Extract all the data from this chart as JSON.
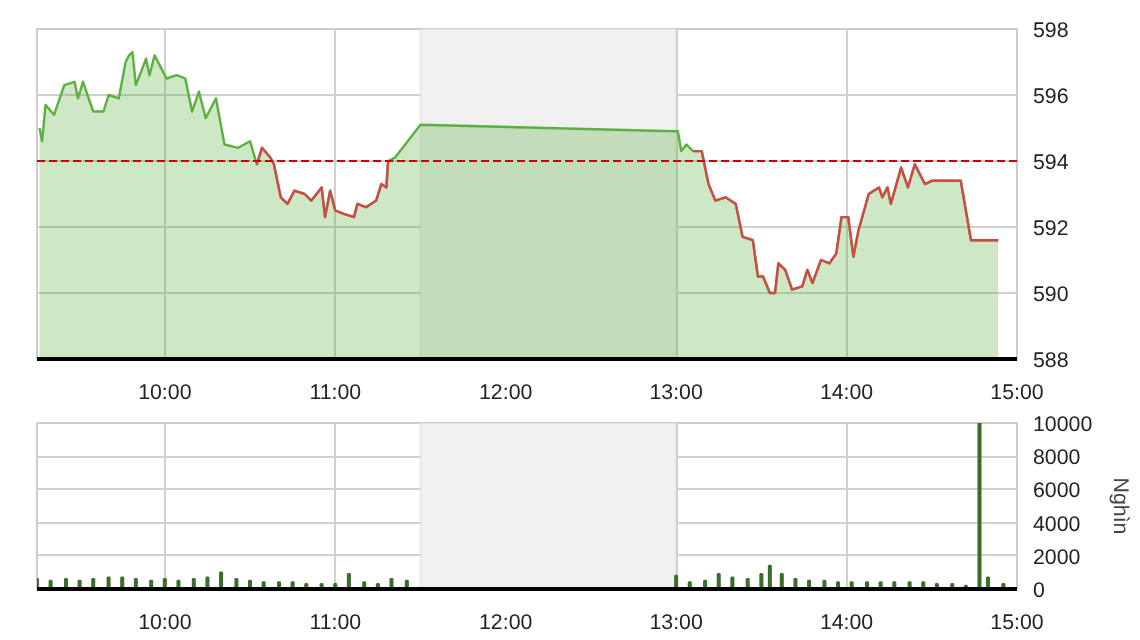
{
  "chart_data": [
    {
      "type": "area",
      "xlim": [
        9.25,
        15
      ],
      "ylim": [
        588,
        598
      ],
      "xticks": [
        {
          "value": 10,
          "label": "10:00"
        },
        {
          "value": 11,
          "label": "11:00"
        },
        {
          "value": 12,
          "label": "12:00"
        },
        {
          "value": 13,
          "label": "13:00"
        },
        {
          "value": 14,
          "label": "14:00"
        },
        {
          "value": 15,
          "label": "15:00"
        }
      ],
      "yticks": [
        588,
        590,
        592,
        594,
        596,
        598
      ],
      "grid": true,
      "x": [
        9.265,
        9.28,
        9.3,
        9.35,
        9.41,
        9.47,
        9.49,
        9.52,
        9.58,
        9.64,
        9.67,
        9.73,
        9.77,
        9.79,
        9.81,
        9.83,
        9.89,
        9.91,
        9.94,
        9.98,
        10.01,
        10.07,
        10.12,
        10.16,
        10.2,
        10.24,
        10.3,
        10.35,
        10.43,
        10.5,
        10.54,
        10.57,
        10.62,
        10.64,
        10.68,
        10.72,
        10.76,
        10.82,
        10.86,
        10.92,
        10.94,
        10.97,
        11.0,
        11.05,
        11.11,
        11.13,
        11.18,
        11.24,
        11.27,
        11.3,
        11.31,
        11.35,
        11.5,
        12.98,
        13.01,
        13.03,
        13.06,
        13.1,
        13.15,
        13.19,
        13.23,
        13.29,
        13.35,
        13.39,
        13.45,
        13.48,
        13.51,
        13.55,
        13.58,
        13.6,
        13.64,
        13.68,
        13.74,
        13.77,
        13.8,
        13.85,
        13.9,
        13.94,
        13.97,
        14.01,
        14.04,
        14.07,
        14.13,
        14.19,
        14.21,
        14.24,
        14.26,
        14.32,
        14.36,
        14.4,
        14.46,
        14.5,
        14.67,
        14.73,
        14.89
      ],
      "series": [
        {
          "type": "area",
          "color": "#5cb040",
          "values": [
            595.0,
            594.6,
            595.7,
            595.4,
            596.3,
            596.4,
            595.9,
            596.4,
            595.5,
            595.5,
            596.0,
            595.9,
            597.0,
            597.2,
            597.3,
            596.3,
            597.1,
            596.6,
            597.2,
            596.8,
            596.5,
            596.6,
            596.5,
            595.5,
            596.1,
            595.3,
            595.9,
            594.5,
            594.4,
            594.6,
            593.9,
            594.4,
            594.1,
            593.9,
            592.9,
            592.7,
            593.1,
            593.0,
            592.8,
            593.2,
            592.3,
            593.1,
            592.5,
            592.4,
            592.3,
            592.7,
            592.6,
            592.8,
            593.3,
            593.2,
            594.0,
            594.1,
            595.1,
            594.9,
            594.9,
            594.3,
            594.5,
            594.3,
            594.3,
            593.3,
            592.8,
            592.9,
            592.7,
            591.7,
            591.6,
            590.5,
            590.5,
            590.0,
            590.0,
            590.9,
            590.7,
            590.1,
            590.2,
            590.7,
            590.3,
            591.0,
            590.9,
            591.2,
            592.3,
            592.3,
            591.1,
            591.9,
            593.0,
            593.2,
            592.9,
            593.2,
            592.7,
            593.8,
            593.2,
            593.9,
            593.3,
            593.4,
            593.4,
            591.6,
            591.6
          ]
        },
        {
          "type": "line",
          "color": "#d04848",
          "values": [
            null,
            null,
            null,
            null,
            null,
            null,
            null,
            null,
            null,
            null,
            null,
            null,
            null,
            null,
            null,
            null,
            null,
            null,
            null,
            null,
            null,
            null,
            null,
            null,
            null,
            null,
            null,
            null,
            null,
            null,
            593.9,
            594.4,
            594.1,
            593.9,
            592.9,
            592.7,
            593.1,
            593.0,
            592.8,
            593.2,
            592.3,
            593.1,
            592.5,
            592.4,
            592.3,
            592.7,
            592.6,
            592.8,
            593.3,
            593.2,
            594.0,
            null,
            null,
            null,
            null,
            null,
            null,
            594.3,
            594.3,
            593.3,
            592.8,
            592.9,
            592.7,
            591.7,
            591.6,
            590.5,
            590.5,
            590.0,
            590.0,
            590.9,
            590.7,
            590.1,
            590.2,
            590.7,
            590.3,
            591.0,
            590.9,
            591.2,
            592.3,
            592.3,
            591.1,
            591.9,
            593.0,
            593.2,
            592.9,
            593.2,
            592.7,
            593.8,
            593.2,
            593.9,
            593.3,
            593.4,
            593.4,
            591.6,
            591.6
          ]
        }
      ],
      "ref_lines": [
        {
          "axis": "y",
          "value": 594,
          "color": "#cc0000",
          "line_style": "dashed"
        }
      ],
      "bands": [
        {
          "axis": "x",
          "from": 11.5,
          "to": 13,
          "color": "#f0f0f0"
        }
      ]
    },
    {
      "type": "bar",
      "ylabel": "Nghìn",
      "xlim": [
        9.25,
        15
      ],
      "ylim": [
        0,
        10000
      ],
      "xticks": [
        {
          "value": 10,
          "label": "10:00"
        },
        {
          "value": 11,
          "label": "11:00"
        },
        {
          "value": 12,
          "label": "12:00"
        },
        {
          "value": 13,
          "label": "13:00"
        },
        {
          "value": 14,
          "label": "14:00"
        },
        {
          "value": 15,
          "label": "15:00"
        }
      ],
      "yticks": [
        0,
        2000,
        4000,
        6000,
        8000,
        10000
      ],
      "grid": true,
      "x": [
        9.25,
        9.33,
        9.42,
        9.5,
        9.58,
        9.67,
        9.75,
        9.83,
        9.92,
        10.0,
        10.08,
        10.17,
        10.25,
        10.33,
        10.42,
        10.5,
        10.58,
        10.67,
        10.75,
        10.83,
        10.92,
        11.0,
        11.08,
        11.17,
        11.25,
        11.33,
        11.42,
        13.0,
        13.08,
        13.17,
        13.25,
        13.33,
        13.42,
        13.5,
        13.55,
        13.62,
        13.7,
        13.78,
        13.87,
        13.95,
        14.03,
        14.12,
        14.2,
        14.28,
        14.37,
        14.45,
        14.53,
        14.62,
        14.7,
        14.78,
        14.83,
        14.92
      ],
      "series": [
        {
          "color": "#3a6e2a",
          "values": [
            600,
            500,
            600,
            500,
            600,
            700,
            700,
            600,
            500,
            600,
            500,
            600,
            700,
            1000,
            600,
            500,
            400,
            400,
            400,
            300,
            300,
            300,
            900,
            400,
            300,
            600,
            500,
            800,
            400,
            500,
            900,
            700,
            600,
            900,
            1400,
            900,
            600,
            500,
            500,
            400,
            400,
            400,
            400,
            400,
            400,
            400,
            300,
            300,
            200,
            10000,
            700,
            300
          ]
        }
      ],
      "bands": [
        {
          "axis": "x",
          "from": 11.5,
          "to": 13,
          "color": "#f0f0f0"
        }
      ]
    }
  ]
}
